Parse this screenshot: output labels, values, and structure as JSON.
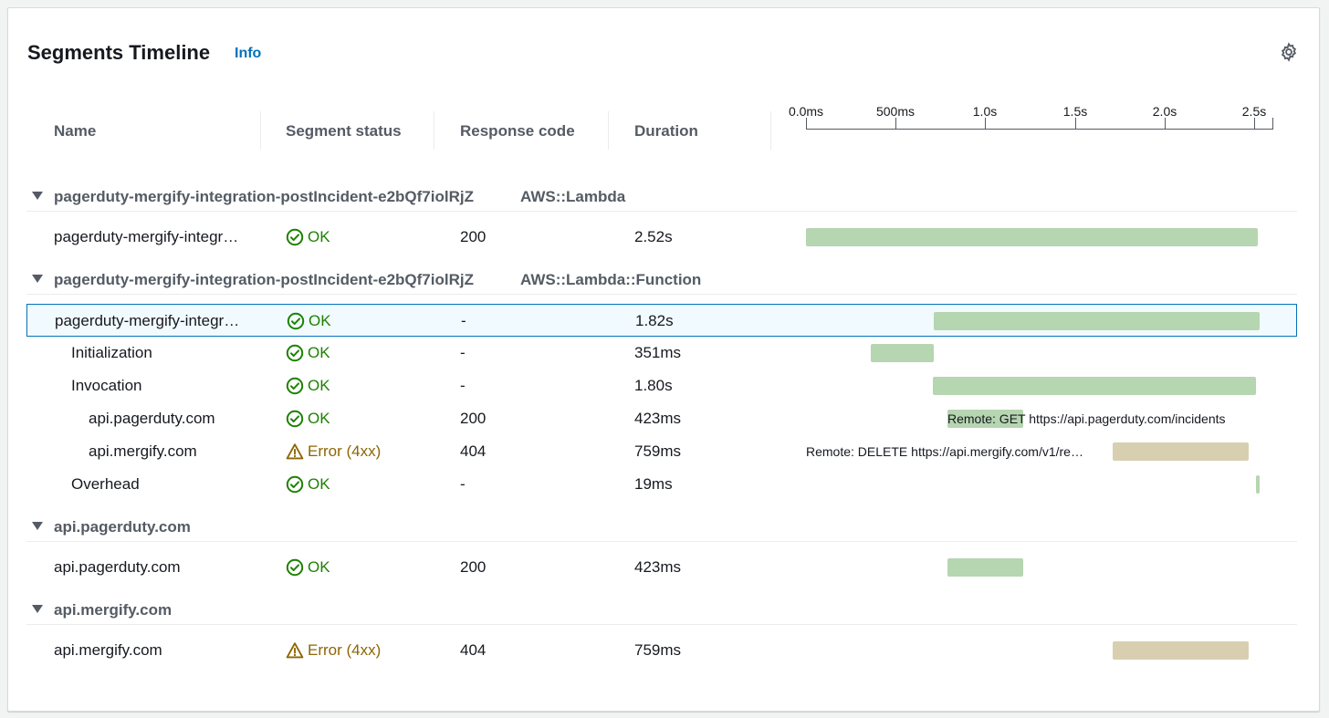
{
  "header": {
    "title": "Segments Timeline",
    "info_label": "Info",
    "settings_icon": "gear-icon"
  },
  "columns": {
    "name": "Name",
    "status": "Segment status",
    "response_code": "Response code",
    "duration": "Duration"
  },
  "axis": {
    "labels": [
      "0.0ms",
      "500ms",
      "1.0s",
      "1.5s",
      "2.0s",
      "2.5s"
    ],
    "max_seconds": 2.6
  },
  "colors": {
    "ok": "#1d8102",
    "error": "#8d6605",
    "bar_ok": "#b6d5b1",
    "bar_error": "#d8cfb0",
    "link": "#0073bb"
  },
  "groups": [
    {
      "name": "pagerduty-mergify-integration-postIncident-e2bQf7iolRjZ",
      "type": "AWS::Lambda",
      "rows": [
        {
          "name": "pagerduty-mergify-integr…",
          "indent": 0,
          "status": "OK",
          "status_kind": "ok",
          "code": "200",
          "duration": "2.52s",
          "start": 0.0,
          "length": 2.52,
          "label": ""
        }
      ]
    },
    {
      "name": "pagerduty-mergify-integration-postIncident-e2bQf7iolRjZ",
      "type": "AWS::Lambda::Function",
      "rows": [
        {
          "name": "pagerduty-mergify-integr…",
          "indent": 0,
          "status": "OK",
          "status_kind": "ok",
          "code": "-",
          "duration": "1.82s",
          "start": 0.71,
          "length": 1.82,
          "label": "",
          "selected": true
        },
        {
          "name": "Initialization",
          "indent": 1,
          "status": "OK",
          "status_kind": "ok",
          "code": "-",
          "duration": "351ms",
          "start": 0.36,
          "length": 0.351,
          "label": ""
        },
        {
          "name": "Invocation",
          "indent": 1,
          "status": "OK",
          "status_kind": "ok",
          "code": "-",
          "duration": "1.80s",
          "start": 0.71,
          "length": 1.8,
          "label": ""
        },
        {
          "name": "api.pagerduty.com",
          "indent": 2,
          "status": "OK",
          "status_kind": "ok",
          "code": "200",
          "duration": "423ms",
          "start": 0.79,
          "length": 0.423,
          "label": "Remote: GET https://api.pagerduty.com/incidents",
          "label_side": "over"
        },
        {
          "name": "api.mergify.com",
          "indent": 2,
          "status": "Error (4xx)",
          "status_kind": "err",
          "code": "404",
          "duration": "759ms",
          "start": 1.71,
          "length": 0.759,
          "label": "Remote: DELETE https://api.mergify.com/v1/re…",
          "label_side": "left"
        },
        {
          "name": "Overhead",
          "indent": 1,
          "status": "OK",
          "status_kind": "ok",
          "code": "-",
          "duration": "19ms",
          "start": 2.51,
          "length": 0.019,
          "label": ""
        }
      ]
    },
    {
      "name": "api.pagerduty.com",
      "type": "",
      "rows": [
        {
          "name": "api.pagerduty.com",
          "indent": 0,
          "status": "OK",
          "status_kind": "ok",
          "code": "200",
          "duration": "423ms",
          "start": 0.79,
          "length": 0.423,
          "label": ""
        }
      ]
    },
    {
      "name": "api.mergify.com",
      "type": "",
      "rows": [
        {
          "name": "api.mergify.com",
          "indent": 0,
          "status": "Error (4xx)",
          "status_kind": "err",
          "code": "404",
          "duration": "759ms",
          "start": 1.71,
          "length": 0.759,
          "label": ""
        }
      ]
    }
  ]
}
